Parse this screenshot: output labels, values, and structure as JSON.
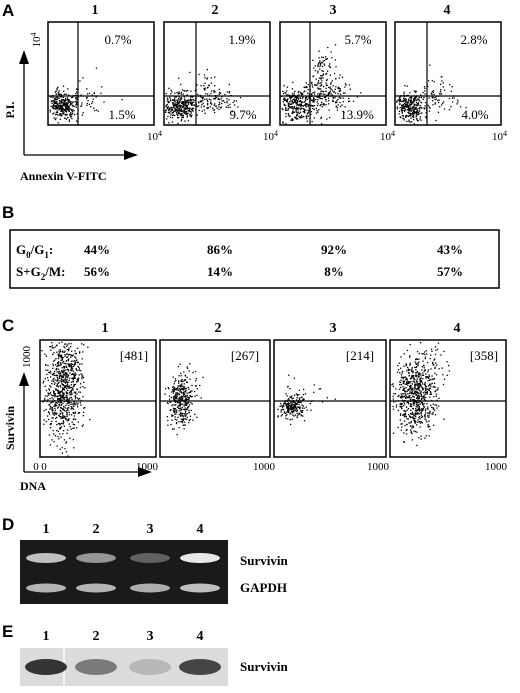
{
  "panels": {
    "A": {
      "letter": "A",
      "lanes": [
        "1",
        "2",
        "3",
        "4"
      ],
      "upper_right": [
        "0.7%",
        "1.9%",
        "5.7%",
        "2.8%"
      ],
      "lower_right": [
        "1.5%",
        "9.7%",
        "13.9%",
        "4.0%"
      ],
      "y_axis_label": "P.I.",
      "x_axis_label": "Annexin V-FITC",
      "tick_base": "10",
      "tick_exp": "4"
    },
    "B": {
      "letter": "B",
      "row1_label_main": "G",
      "row1_label_sub1": "0",
      "row1_label_mid": "/G",
      "row1_label_sub2": "1",
      "row1_label_end": ":",
      "row2_label_main": "S+G",
      "row2_label_sub": "2",
      "row2_label_end": "/M:",
      "g0g1": [
        "44%",
        "86%",
        "92%",
        "43%"
      ],
      "sg2m": [
        "56%",
        "14%",
        "8%",
        "57%"
      ]
    },
    "C": {
      "letter": "C",
      "lanes": [
        "1",
        "2",
        "3",
        "4"
      ],
      "values": [
        "[481]",
        "[267]",
        "[214]",
        "[358]"
      ],
      "y_axis_label": "Survivin",
      "x_axis_label": "DNA",
      "ytick_top": "1000",
      "ytick_zero": "0",
      "xtick_left": "0",
      "xtick_right": "1000"
    },
    "D": {
      "letter": "D",
      "lanes": [
        "1",
        "2",
        "3",
        "4"
      ],
      "band1_label": "Survivin",
      "band2_label": "GAPDH",
      "band1_intensity": [
        0.8,
        0.6,
        0.35,
        1.0
      ],
      "band2_intensity": [
        0.75,
        0.75,
        0.72,
        0.8
      ]
    },
    "E": {
      "letter": "E",
      "lanes": [
        "1",
        "2",
        "3",
        "4"
      ],
      "band_label": "Survivin",
      "band_intensity": [
        0.95,
        0.55,
        0.2,
        0.85
      ]
    }
  },
  "colors": {
    "ink": "#000000",
    "gel_bg": "#1a1a1a",
    "gel_band": "#e8e8e8",
    "blot_bg": "#dcdcdc",
    "blot_band": "#2a2a2a"
  }
}
